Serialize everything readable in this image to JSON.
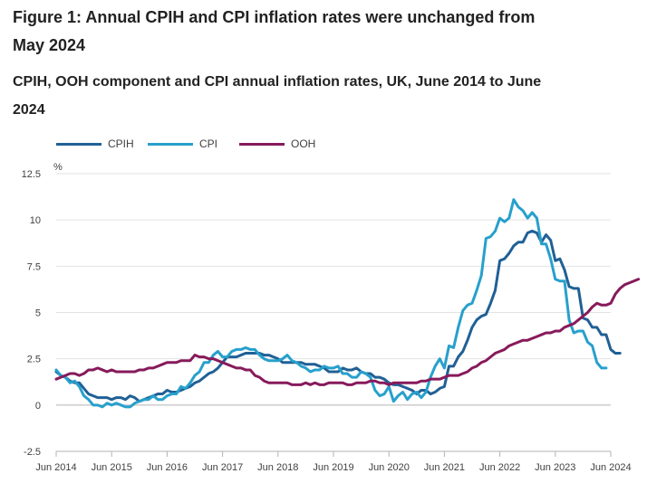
{
  "title": "Figure 1: Annual CPIH and CPI inflation rates were unchanged from May 2024",
  "subtitle": "CPIH, OOH component and CPI annual inflation rates, UK, June 2014 to June 2024",
  "chart_data": {
    "type": "line",
    "title": "CPIH, OOH component and CPI annual inflation rates, UK, June 2014 to June 2024",
    "ylabel": "%",
    "xlabel": "",
    "ylim": [
      -2.5,
      12.5
    ],
    "yticks": [
      "12.5",
      "10",
      "7.5",
      "5",
      "2.5",
      "0",
      "-2.5"
    ],
    "ytick_values": [
      12.5,
      10,
      7.5,
      5,
      2.5,
      0,
      -2.5
    ],
    "xticks": [
      "Jun 2014",
      "Jun 2015",
      "Jun 2016",
      "Jun 2017",
      "Jun 2018",
      "Jun 2019",
      "Jun 2020",
      "Jun 2021",
      "Jun 2022",
      "Jun 2023",
      "Jun 2024"
    ],
    "xtick_months": [
      0,
      12,
      24,
      36,
      48,
      60,
      72,
      84,
      96,
      108,
      120
    ],
    "x_start": "Jun 2014",
    "legend_position": "top-left",
    "grid": true,
    "series": [
      {
        "name": "CPIH",
        "color": "#206095",
        "values": [
          1.8,
          1.6,
          1.5,
          1.3,
          1.2,
          1.2,
          0.9,
          0.6,
          0.5,
          0.4,
          0.4,
          0.4,
          0.3,
          0.4,
          0.4,
          0.3,
          0.5,
          0.4,
          0.2,
          0.3,
          0.4,
          0.5,
          0.6,
          0.6,
          0.8,
          0.7,
          0.7,
          0.8,
          0.9,
          1.0,
          1.2,
          1.3,
          1.5,
          1.7,
          1.8,
          2.0,
          2.3,
          2.6,
          2.6,
          2.6,
          2.7,
          2.8,
          2.8,
          2.8,
          2.8,
          2.7,
          2.7,
          2.6,
          2.5,
          2.3,
          2.3,
          2.3,
          2.3,
          2.3,
          2.2,
          2.2,
          2.2,
          2.1,
          2.0,
          1.8,
          1.8,
          1.8,
          2.0,
          1.9,
          1.9,
          2.0,
          1.8,
          1.7,
          1.7,
          1.5,
          1.5,
          1.4,
          1.2,
          1.1,
          1.1,
          1.0,
          0.9,
          0.8,
          0.6,
          0.8,
          0.8,
          0.6,
          0.7,
          0.9,
          1.0,
          2.1,
          2.1,
          2.6,
          2.9,
          3.5,
          4.2,
          4.6,
          4.8,
          4.9,
          5.5,
          6.2,
          7.8,
          7.9,
          8.2,
          8.6,
          8.8,
          8.8,
          9.3,
          9.4,
          9.3,
          8.8,
          9.2,
          8.9,
          7.8,
          7.9,
          7.3,
          6.4,
          6.3,
          6.3,
          4.7,
          4.6,
          4.2,
          4.2,
          3.8,
          3.8,
          3.0,
          2.8,
          2.8
        ]
      },
      {
        "name": "CPI",
        "color": "#27a0cc",
        "values": [
          1.9,
          1.6,
          1.5,
          1.2,
          1.3,
          1.0,
          0.5,
          0.3,
          0.0,
          0.0,
          -0.1,
          0.1,
          0.0,
          0.1,
          0.0,
          -0.1,
          -0.1,
          0.1,
          0.2,
          0.3,
          0.3,
          0.5,
          0.3,
          0.3,
          0.5,
          0.6,
          0.6,
          1.0,
          0.9,
          1.2,
          1.6,
          1.8,
          2.3,
          2.3,
          2.7,
          2.9,
          2.6,
          2.6,
          2.9,
          3.0,
          3.0,
          3.1,
          3.0,
          3.0,
          2.7,
          2.5,
          2.4,
          2.4,
          2.4,
          2.5,
          2.7,
          2.4,
          2.3,
          2.1,
          2.0,
          1.8,
          1.9,
          1.9,
          2.1,
          2.0,
          2.0,
          2.1,
          1.7,
          1.7,
          1.5,
          1.5,
          1.8,
          1.7,
          1.5,
          0.8,
          0.5,
          0.6,
          1.0,
          0.2,
          0.5,
          0.7,
          0.3,
          0.6,
          0.7,
          0.4,
          0.7,
          1.5,
          2.1,
          2.5,
          2.0,
          3.2,
          3.1,
          4.2,
          5.1,
          5.4,
          5.5,
          6.2,
          7.0,
          9.0,
          9.1,
          9.4,
          10.1,
          9.9,
          10.1,
          11.1,
          10.7,
          10.5,
          10.1,
          10.4,
          10.1,
          8.7,
          8.7,
          7.9,
          6.8,
          6.7,
          6.7,
          4.6,
          3.9,
          4.0,
          4.0,
          3.4,
          3.2,
          2.3,
          2.0,
          2.0
        ]
      },
      {
        "name": "OOH",
        "color": "#871a5b",
        "values": [
          1.4,
          1.5,
          1.6,
          1.7,
          1.7,
          1.6,
          1.7,
          1.9,
          1.9,
          2.0,
          1.9,
          1.8,
          1.9,
          1.8,
          1.8,
          1.8,
          1.8,
          1.8,
          1.9,
          1.9,
          2.0,
          2.0,
          2.1,
          2.2,
          2.3,
          2.3,
          2.3,
          2.4,
          2.4,
          2.4,
          2.7,
          2.6,
          2.6,
          2.5,
          2.5,
          2.4,
          2.3,
          2.2,
          2.1,
          2.0,
          2.0,
          1.9,
          1.9,
          1.6,
          1.5,
          1.3,
          1.2,
          1.2,
          1.2,
          1.2,
          1.2,
          1.1,
          1.1,
          1.1,
          1.2,
          1.1,
          1.2,
          1.1,
          1.1,
          1.2,
          1.2,
          1.2,
          1.2,
          1.1,
          1.1,
          1.2,
          1.2,
          1.2,
          1.3,
          1.3,
          1.2,
          1.2,
          1.1,
          1.2,
          1.2,
          1.2,
          1.2,
          1.2,
          1.2,
          1.3,
          1.3,
          1.4,
          1.4,
          1.4,
          1.5,
          1.6,
          1.6,
          1.6,
          1.7,
          1.8,
          2.0,
          2.1,
          2.3,
          2.4,
          2.6,
          2.8,
          2.9,
          3.0,
          3.2,
          3.3,
          3.4,
          3.5,
          3.5,
          3.6,
          3.7,
          3.8,
          3.9,
          3.9,
          4.0,
          4.0,
          4.2,
          4.3,
          4.4,
          4.6,
          4.8,
          5.0,
          5.3,
          5.5,
          5.4,
          5.4,
          5.5,
          6.0,
          6.3,
          6.5,
          6.6,
          6.7,
          6.8
        ]
      }
    ]
  }
}
